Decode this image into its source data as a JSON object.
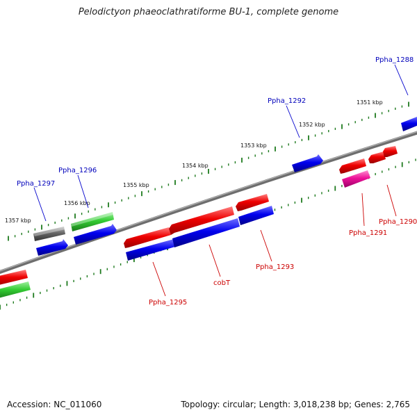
{
  "title": "Pelodictyon phaeoclathratiforme BU-1, complete genome",
  "footer": {
    "accession": "Accession: NC_011060",
    "summary": "Topology: circular; Length: 3,018,238 bp; Genes: 2,765"
  },
  "colors": {
    "backbone": "#7a7a7a",
    "tick": "#1e7a1e",
    "label_forward": "#0000bb",
    "label_reverse": "#cc0000"
  },
  "kbp_labels": [
    "1357 kbp",
    "1356 kbp",
    "1355 kbp",
    "1354 kbp",
    "1353 kbp",
    "1352 kbp",
    "1351 kbp"
  ],
  "gene_labels": {
    "forward": [
      "Ppha_1297",
      "Ppha_1296",
      "Ppha_1292",
      "Ppha_1288"
    ],
    "reverse": [
      "Ppha_1295",
      "cobT",
      "Ppha_1293",
      "Ppha_1291",
      "Ppha_1290"
    ]
  },
  "genes": [
    {
      "track": "outer",
      "color": "gray"
    },
    {
      "track": "outer",
      "color": "green"
    },
    {
      "track": "inner-top",
      "color": "blue"
    },
    {
      "track": "inner-top",
      "color": "blue"
    },
    {
      "track": "inner-top",
      "color": "blue"
    },
    {
      "track": "inner-top",
      "color": "blue"
    },
    {
      "track": "inner-top",
      "color": "blue"
    },
    {
      "track": "inner-bottom",
      "color": "red"
    },
    {
      "track": "inner-bottom",
      "color": "red"
    },
    {
      "track": "inner-bottom",
      "color": "red"
    },
    {
      "track": "inner-bottom",
      "color": "red"
    },
    {
      "track": "inner-bottom",
      "color": "pink"
    },
    {
      "track": "inner-bottom",
      "color": "red"
    },
    {
      "track": "inner-bottom",
      "color": "red"
    },
    {
      "track": "edge",
      "color": "red"
    },
    {
      "track": "edge",
      "color": "green"
    },
    {
      "track": "edge",
      "color": "blue"
    }
  ]
}
